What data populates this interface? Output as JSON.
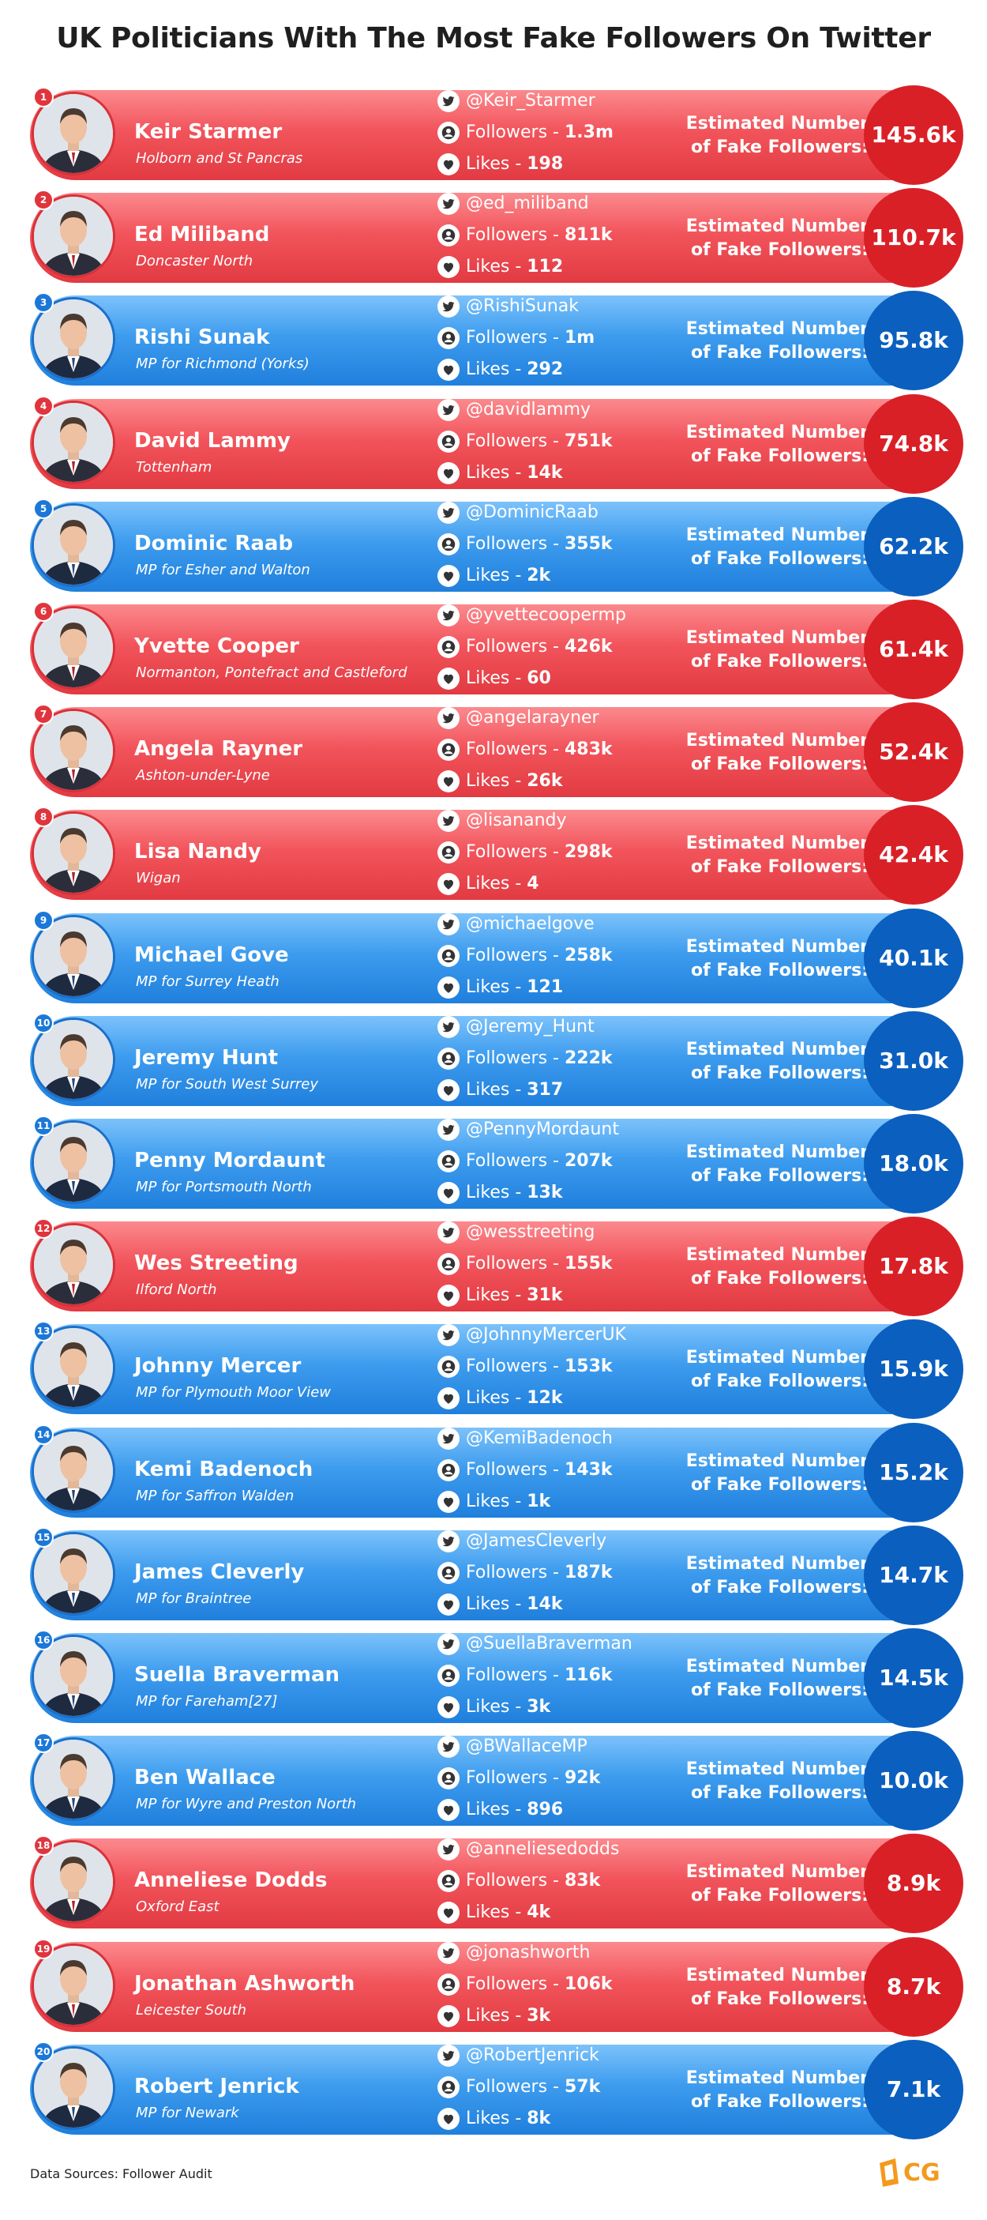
{
  "title": "UK Politicians With The Most Fake Followers On Twitter",
  "fake_label_line1": "Estimated Number",
  "fake_label_line2": "of Fake Followers:",
  "followers_prefix": "Followers - ",
  "likes_prefix": "Likes - ",
  "source": "Data Sources: Follower Audit",
  "logo_text": "CG",
  "colors": {
    "red": "#e23a42",
    "blue": "#1f7fdc",
    "logo": "#f39a1e"
  },
  "icons": [
    "twitter-icon",
    "user-icon",
    "heart-icon"
  ],
  "politicians": [
    {
      "rank": "1",
      "name": "Keir Starmer",
      "constituency": "Holborn and St Pancras",
      "handle": "@Keir_Starmer",
      "followers": "1.3m",
      "likes": "198",
      "fake": "145.6k",
      "party_color": "red"
    },
    {
      "rank": "2",
      "name": "Ed Miliband",
      "constituency": "Doncaster North",
      "handle": "@ed_miliband",
      "followers": "811k",
      "likes": "112",
      "fake": "110.7k",
      "party_color": "red"
    },
    {
      "rank": "3",
      "name": "Rishi Sunak",
      "constituency": "MP for Richmond (Yorks)",
      "handle": "@RishiSunak",
      "followers": "1m",
      "likes": "292",
      "fake": "95.8k",
      "party_color": "blue"
    },
    {
      "rank": "4",
      "name": "David Lammy",
      "constituency": "Tottenham",
      "handle": "@davidlammy",
      "followers": "751k",
      "likes": "14k",
      "fake": "74.8k",
      "party_color": "red"
    },
    {
      "rank": "5",
      "name": "Dominic Raab",
      "constituency": "MP for Esher and Walton",
      "handle": "@DominicRaab",
      "followers": "355k",
      "likes": "2k",
      "fake": "62.2k",
      "party_color": "blue"
    },
    {
      "rank": "6",
      "name": "Yvette Cooper",
      "constituency": "Normanton, Pontefract and Castleford",
      "handle": "@yvettecoopermp",
      "followers": "426k",
      "likes": "60",
      "fake": "61.4k",
      "party_color": "red"
    },
    {
      "rank": "7",
      "name": "Angela Rayner",
      "constituency": "Ashton-under-Lyne",
      "handle": "@angelarayner",
      "followers": "483k",
      "likes": "26k",
      "fake": "52.4k",
      "party_color": "red"
    },
    {
      "rank": "8",
      "name": "Lisa Nandy",
      "constituency": "Wigan",
      "handle": "@lisanandy",
      "followers": "298k",
      "likes": "4",
      "fake": "42.4k",
      "party_color": "red"
    },
    {
      "rank": "9",
      "name": "Michael Gove",
      "constituency": "MP for Surrey Heath",
      "handle": "@michaelgove",
      "followers": "258k",
      "likes": "121",
      "fake": "40.1k",
      "party_color": "blue"
    },
    {
      "rank": "10",
      "name": "Jeremy Hunt",
      "constituency": "MP for South West Surrey",
      "handle": "@Jeremy_Hunt",
      "followers": "222k",
      "likes": "317",
      "fake": "31.0k",
      "party_color": "blue"
    },
    {
      "rank": "11",
      "name": "Penny Mordaunt",
      "constituency": "MP for Portsmouth North",
      "handle": "@PennyMordaunt",
      "followers": "207k",
      "likes": "13k",
      "fake": "18.0k",
      "party_color": "blue"
    },
    {
      "rank": "12",
      "name": "Wes Streeting",
      "constituency": "Ilford North",
      "handle": "@wesstreeting",
      "followers": "155k",
      "likes": "31k",
      "fake": "17.8k",
      "party_color": "red"
    },
    {
      "rank": "13",
      "name": "Johnny Mercer",
      "constituency": "MP for Plymouth Moor View",
      "handle": "@JohnnyMercerUK",
      "followers": "153k",
      "likes": "12k",
      "fake": "15.9k",
      "party_color": "blue"
    },
    {
      "rank": "14",
      "name": "Kemi Badenoch",
      "constituency": "MP for Saffron Walden",
      "handle": "@KemiBadenoch",
      "followers": "143k",
      "likes": "1k",
      "fake": "15.2k",
      "party_color": "blue"
    },
    {
      "rank": "15",
      "name": "James Cleverly",
      "constituency": "MP for Braintree",
      "handle": "@JamesCleverly",
      "followers": "187k",
      "likes": "14k",
      "fake": "14.7k",
      "party_color": "blue"
    },
    {
      "rank": "16",
      "name": "Suella Braverman",
      "constituency": "MP for Fareham[27]",
      "handle": "@SuellaBraverman",
      "followers": "116k",
      "likes": "3k",
      "fake": "14.5k",
      "party_color": "blue"
    },
    {
      "rank": "17",
      "name": "Ben Wallace",
      "constituency": "MP for Wyre and Preston North",
      "handle": "@BWallaceMP",
      "followers": "92k",
      "likes": "896",
      "fake": "10.0k",
      "party_color": "blue"
    },
    {
      "rank": "18",
      "name": "Anneliese Dodds",
      "constituency": "Oxford East",
      "handle": "@anneliesedodds",
      "followers": "83k",
      "likes": "4k",
      "fake": "8.9k",
      "party_color": "red"
    },
    {
      "rank": "19",
      "name": "Jonathan Ashworth",
      "constituency": "Leicester South",
      "handle": "@jonashworth",
      "followers": "106k",
      "likes": "3k",
      "fake": "8.7k",
      "party_color": "red"
    },
    {
      "rank": "20",
      "name": "Robert Jenrick",
      "constituency": "MP for Newark",
      "handle": "@RobertJenrick",
      "followers": "57k",
      "likes": "8k",
      "fake": "7.1k",
      "party_color": "blue"
    }
  ]
}
